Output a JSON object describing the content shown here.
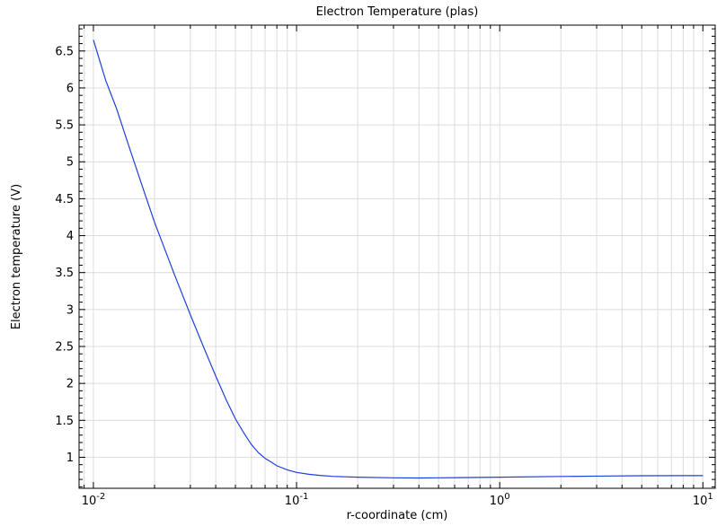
{
  "chart_data": {
    "type": "line",
    "title": "Electron Temperature (plas)",
    "xlabel": "r-coordinate (cm)",
    "ylabel": "Electron temperature (V)",
    "x_scale": "log",
    "xlim": [
      0.0085,
      11.5
    ],
    "ylim": [
      0.58,
      6.85
    ],
    "grid": true,
    "x_ticks": [
      {
        "value": 0.01,
        "base": "10",
        "exp": "-2"
      },
      {
        "value": 0.1,
        "base": "10",
        "exp": "-1"
      },
      {
        "value": 1,
        "base": "10",
        "exp": "0"
      },
      {
        "value": 10,
        "base": "10",
        "exp": "1"
      }
    ],
    "y_ticks": [
      {
        "value": 1,
        "label": "1"
      },
      {
        "value": 1.5,
        "label": "1.5"
      },
      {
        "value": 2,
        "label": "2"
      },
      {
        "value": 2.5,
        "label": "2.5"
      },
      {
        "value": 3,
        "label": "3"
      },
      {
        "value": 3.5,
        "label": "3.5"
      },
      {
        "value": 4,
        "label": "4"
      },
      {
        "value": 4.5,
        "label": "4.5"
      },
      {
        "value": 5,
        "label": "5"
      },
      {
        "value": 5.5,
        "label": "5.5"
      },
      {
        "value": 6,
        "label": "6"
      },
      {
        "value": 6.5,
        "label": "6.5"
      }
    ],
    "series": [
      {
        "color": "#1f3fdc",
        "x": [
          0.01,
          0.0115,
          0.013,
          0.015,
          0.0175,
          0.02,
          0.025,
          0.03,
          0.035,
          0.04,
          0.045,
          0.05,
          0.055,
          0.06,
          0.065,
          0.07,
          0.075,
          0.08,
          0.09,
          0.1,
          0.115,
          0.13,
          0.15,
          0.2,
          0.3,
          0.4,
          0.5,
          0.7,
          1,
          2,
          3,
          5,
          10
        ],
        "y": [
          6.65,
          6.1,
          5.72,
          5.2,
          4.65,
          4.18,
          3.48,
          2.93,
          2.48,
          2.1,
          1.78,
          1.52,
          1.33,
          1.17,
          1.06,
          0.985,
          0.935,
          0.885,
          0.83,
          0.795,
          0.77,
          0.755,
          0.742,
          0.73,
          0.722,
          0.72,
          0.722,
          0.726,
          0.73,
          0.74,
          0.745,
          0.75,
          0.752
        ]
      }
    ]
  }
}
